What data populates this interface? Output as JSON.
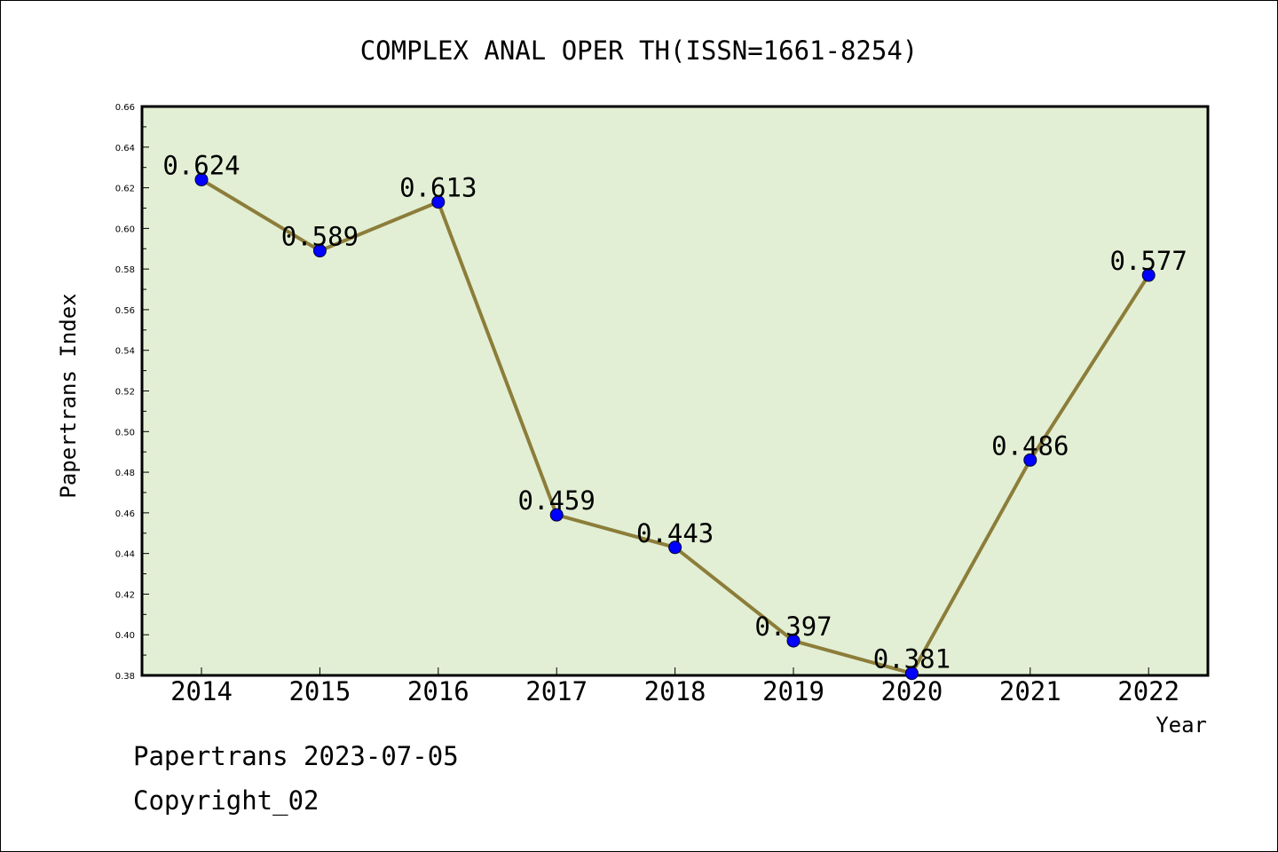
{
  "footer": {
    "line1": "Papertrans 2023-07-05",
    "line2": "Copyright_02"
  },
  "chart_data": {
    "type": "line",
    "title": "COMPLEX ANAL OPER TH(ISSN=1661-8254)",
    "xlabel": "Year",
    "ylabel": "Papertrans Index",
    "categories": [
      "2014",
      "2015",
      "2016",
      "2017",
      "2018",
      "2019",
      "2020",
      "2021",
      "2022"
    ],
    "values": [
      0.624,
      0.589,
      0.613,
      0.459,
      0.443,
      0.397,
      0.381,
      0.486,
      0.577
    ],
    "data_labels": [
      "0.624",
      "0.589",
      "0.613",
      "0.459",
      "0.443",
      "0.397",
      "0.381",
      "0.486",
      "0.577"
    ],
    "ylim": [
      0.38,
      0.66
    ],
    "yticks": [
      "0.38",
      "0.40",
      "0.42",
      "0.44",
      "0.46",
      "0.48",
      "0.50",
      "0.52",
      "0.54",
      "0.56",
      "0.58",
      "0.60",
      "0.62",
      "0.64",
      "0.66"
    ],
    "grid": false,
    "legend": "none",
    "colors": {
      "plot_background": "#e2efd4",
      "line": "#8c7d3a",
      "marker": "#0000ff"
    }
  }
}
